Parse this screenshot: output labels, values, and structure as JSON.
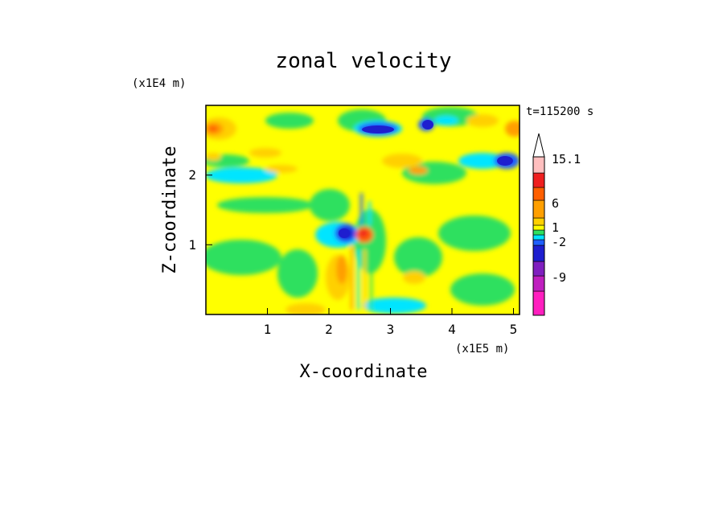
{
  "chart_data": {
    "type": "heatmap",
    "title": "zonal velocity",
    "xlabel": "X-coordinate",
    "ylabel": "Z-coordinate",
    "x_scale_note": "(x1E5 m)",
    "y_scale_note": "(x1E4 m)",
    "time_label": "t=115200 s",
    "xlim": [
      0.0,
      5.1
    ],
    "ylim": [
      0.0,
      3.0
    ],
    "x_ticks": [
      "1",
      "2",
      "3",
      "4",
      "5"
    ],
    "y_ticks": [
      "1",
      "2"
    ],
    "colorbar": {
      "labels": [
        "15.1",
        "6",
        "1",
        "-2",
        "-9"
      ],
      "levels": [
        {
          "color": "#ff1fbf"
        },
        {
          "color": "#bf1fbf"
        },
        {
          "color": "#7f1fbf"
        },
        {
          "color": "#1e1ecf"
        },
        {
          "color": "#1e5fff"
        },
        {
          "color": "#00e5ff"
        },
        {
          "color": "#2fe05f"
        },
        {
          "color": "#ffff00"
        },
        {
          "color": "#ffd000"
        },
        {
          "color": "#ff9f00"
        },
        {
          "color": "#ff5f00"
        },
        {
          "color": "#ef1f1f"
        },
        {
          "color": "#ff8080"
        },
        {
          "color": "#ffbfbf"
        }
      ]
    },
    "features": [
      {
        "x": 2.3,
        "z": 1.15,
        "label": "strong westward core (about -9 to -2)"
      },
      {
        "x": 2.55,
        "z": 1.15,
        "label": "strong eastward core (about 6)"
      },
      {
        "x": 2.6,
        "z": 2.75,
        "label": "westward band near top"
      },
      {
        "x": 3.5,
        "z": 2.8,
        "label": "westward band near top"
      },
      {
        "x": 0.15,
        "z": 2.6,
        "label": "eastward maximum (about 6)"
      }
    ]
  }
}
